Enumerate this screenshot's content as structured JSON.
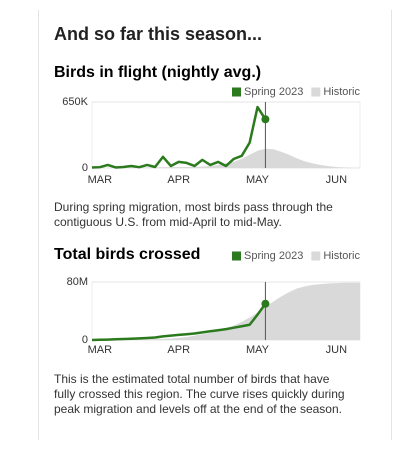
{
  "heading": "And so far this season...",
  "chart_data": [
    {
      "type": "line",
      "title": "Birds in flight (nightly avg.)",
      "description": "During spring migration, most birds pass through the contiguous U.S. from mid-April to mid-May.",
      "categories": [
        null,
        "MAR",
        null,
        null,
        null,
        null,
        null,
        null,
        null,
        null,
        null,
        "APR",
        null,
        null,
        null,
        null,
        null,
        null,
        null,
        null,
        null,
        "MAY",
        null,
        null,
        null,
        null,
        null,
        null,
        null,
        null,
        null,
        "JUN",
        null,
        null,
        null
      ],
      "series": [
        {
          "name": "Spring 2023",
          "color": "#2b7a1e",
          "style": "line",
          "values": [
            5000,
            8000,
            30000,
            5000,
            10000,
            20000,
            8000,
            30000,
            10000,
            110000,
            20000,
            60000,
            50000,
            20000,
            80000,
            30000,
            60000,
            20000,
            90000,
            120000,
            250000,
            600000,
            480000,
            null,
            null,
            null,
            null,
            null,
            null,
            null,
            null,
            null,
            null,
            null,
            null
          ]
        },
        {
          "name": "Historic",
          "color": "#d9d9d9",
          "style": "area",
          "values": [
            2000,
            2000,
            3000,
            3000,
            4000,
            4000,
            5000,
            6000,
            7000,
            8000,
            9000,
            10000,
            10000,
            10000,
            15000,
            20000,
            30000,
            45000,
            60000,
            90000,
            130000,
            170000,
            190000,
            185000,
            160000,
            130000,
            95000,
            65000,
            45000,
            30000,
            18000,
            10000,
            6000,
            3000,
            2000
          ]
        }
      ],
      "ylim": [
        0,
        650000
      ],
      "yticks": [
        0,
        {
          "value": 650000,
          "label": "650K"
        }
      ]
    },
    {
      "type": "line",
      "title": "Total birds crossed",
      "description": "This is the estimated total number of birds that have fully crossed this region. The curve rises quickly during peak migration and levels off at the end of the season.",
      "categories": [
        null,
        "MAR",
        null,
        null,
        null,
        null,
        null,
        null,
        null,
        null,
        null,
        "APR",
        null,
        null,
        null,
        null,
        null,
        null,
        null,
        null,
        null,
        "MAY",
        null,
        null,
        null,
        null,
        null,
        null,
        null,
        null,
        null,
        "JUN",
        null,
        null,
        null
      ],
      "series": [
        {
          "name": "Spring 2023",
          "color": "#2b7a1e",
          "style": "line",
          "values": [
            0,
            300000,
            600000,
            1000000,
            1300000,
            1800000,
            2300000,
            2800000,
            3500000,
            5000000,
            6000000,
            7000000,
            8000000,
            9000000,
            10500000,
            12000000,
            13500000,
            15000000,
            17000000,
            19000000,
            21000000,
            35000000,
            50000000,
            null,
            null,
            null,
            null,
            null,
            null,
            null,
            null,
            null,
            null,
            null,
            null
          ]
        },
        {
          "name": "Historic",
          "color": "#d9d9d9",
          "style": "area",
          "values": [
            0,
            100000,
            200000,
            300000,
            400000,
            600000,
            800000,
            1000000,
            1300000,
            1600000,
            2000000,
            3000000,
            4000000,
            6000000,
            8000000,
            10000000,
            13000000,
            16000000,
            20000000,
            25000000,
            31000000,
            38000000,
            46000000,
            53000000,
            60000000,
            66000000,
            71000000,
            74000000,
            76000000,
            77000000,
            78000000,
            78500000,
            79000000,
            79000000,
            79000000
          ]
        }
      ],
      "ylim": [
        0,
        80000000
      ],
      "yticks": [
        0,
        {
          "value": 80000000,
          "label": "80M"
        }
      ]
    }
  ]
}
